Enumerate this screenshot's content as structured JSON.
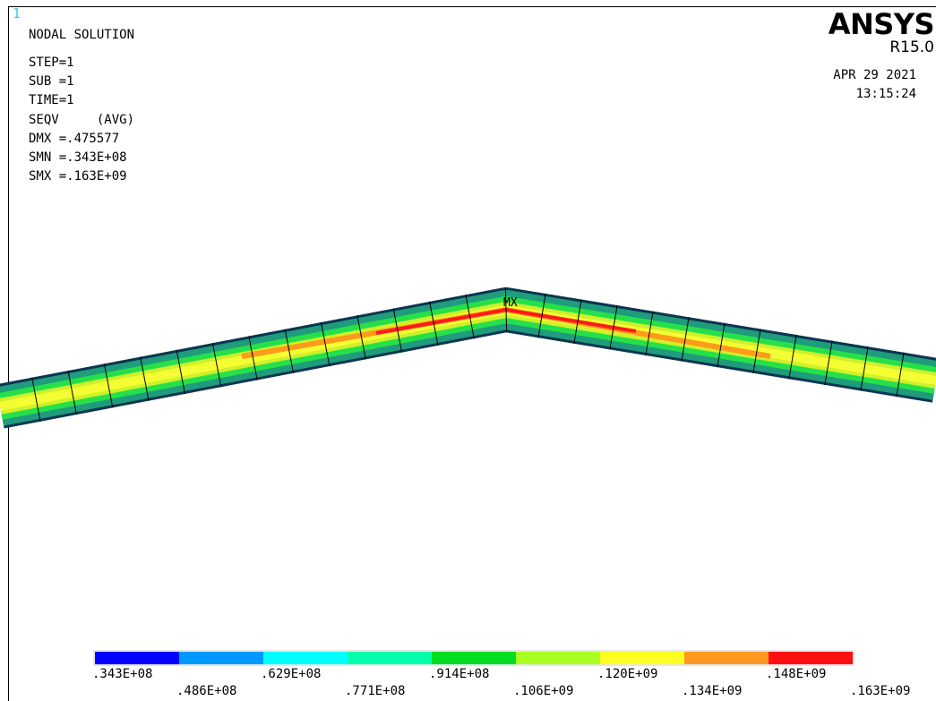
{
  "window": {
    "number": "1"
  },
  "info": {
    "title": "NODAL SOLUTION",
    "lines": [
      "STEP=1",
      "SUB =1",
      "TIME=1",
      "SEQV     (AVG)",
      "DMX =.475577",
      "SMN =.343E+08",
      "SMX =.163E+09"
    ]
  },
  "brand": {
    "name": "ANSYS",
    "release": "R15.0"
  },
  "run": {
    "date": "APR 29 2021",
    "time": "13:15:24"
  },
  "model": {
    "max_marker": "MX",
    "colors": {
      "outline": "#0b3550",
      "outer": "#1e9c7c",
      "mid": "#26e04a",
      "inner": "#cff02a",
      "core": "#f4ff33",
      "hot": "#ff9a1a",
      "peak": "#ff1a1a"
    }
  },
  "legend": {
    "colors": [
      "#0000ff",
      "#0099ff",
      "#00ffff",
      "#00ffaa",
      "#00dd22",
      "#aaff22",
      "#ffff22",
      "#ff9922",
      "#ff1111"
    ],
    "labels_top": [
      ".343E+08",
      ".629E+08",
      ".914E+08",
      ".120E+09",
      ".148E+09"
    ],
    "labels_bottom": [
      ".486E+08",
      ".771E+08",
      ".106E+09",
      ".134E+09",
      ".163E+09"
    ]
  }
}
